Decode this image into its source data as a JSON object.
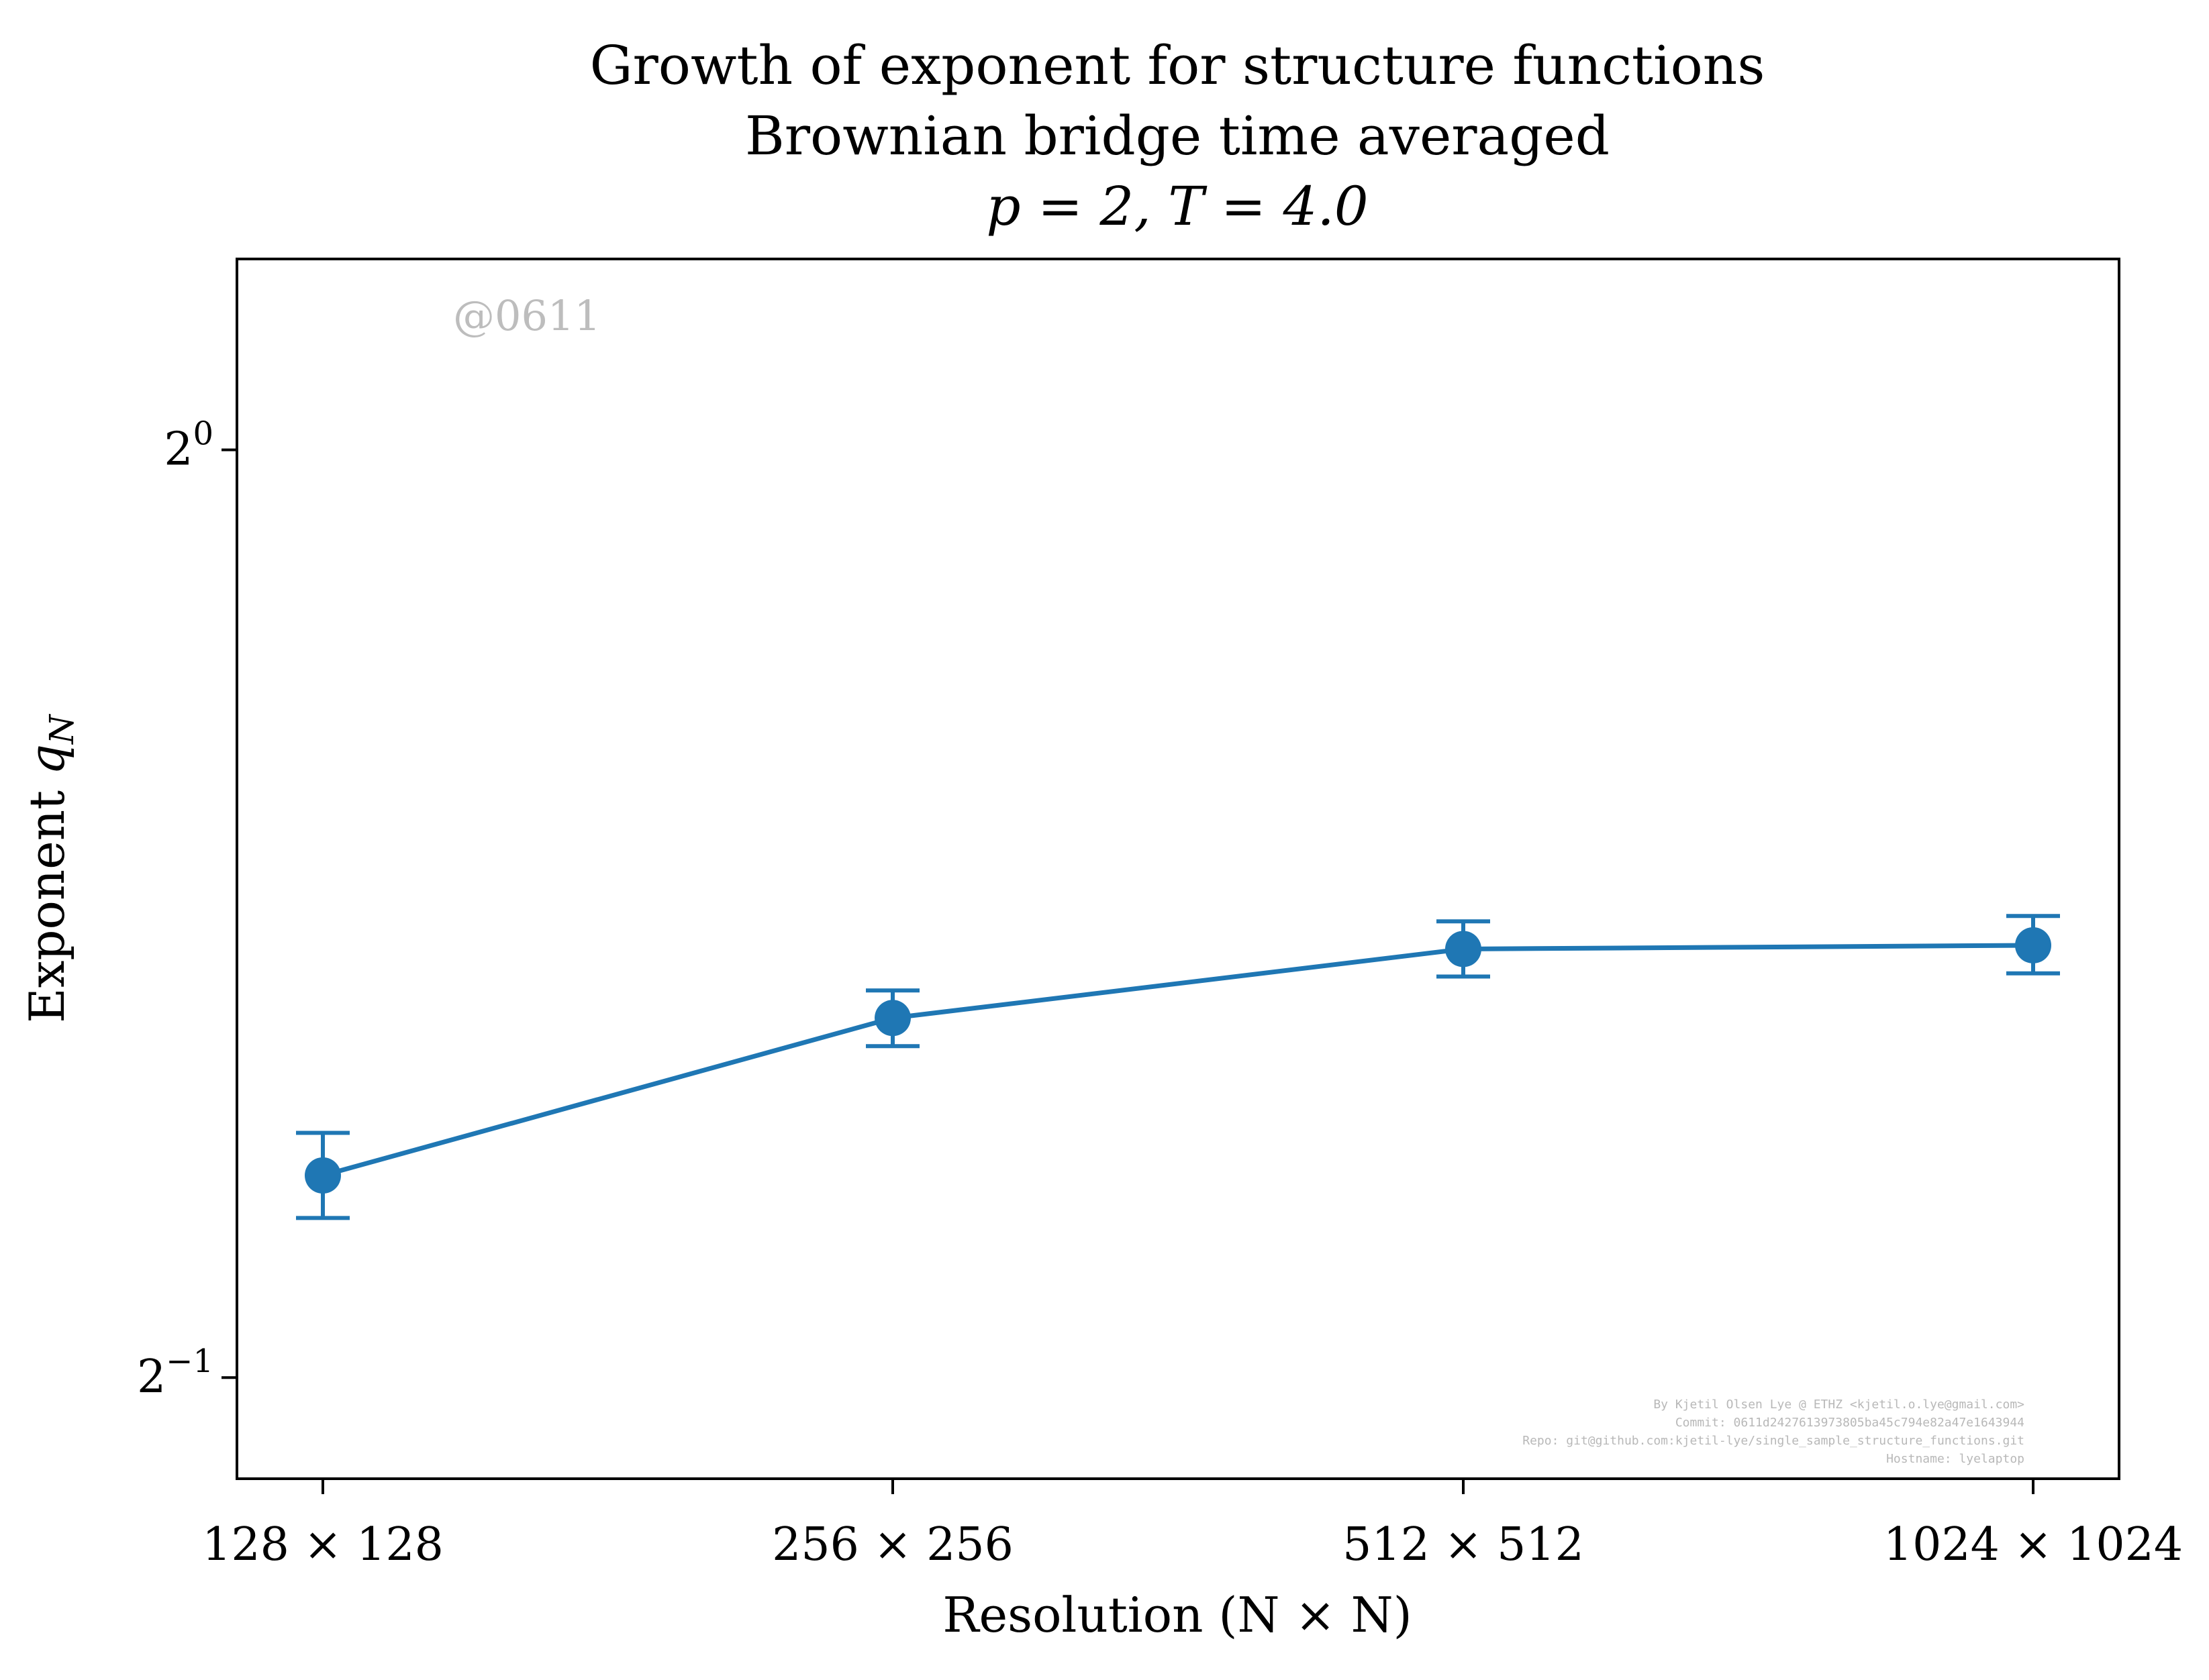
{
  "chart_data": {
    "type": "line",
    "title_lines": [
      "Growth of exponent for structure functions",
      "Brownian bridge time averaged",
      "p = 2, T = 4.0"
    ],
    "xlabel": "Resolution (N × N)",
    "ylabel_main": "Exponent ",
    "ylabel_var": "q",
    "ylabel_sub": "N",
    "y_scale": "log2",
    "ylim": [
      0.4636,
      1.1533
    ],
    "y_ticks": [
      {
        "value": 1.0,
        "base": "2",
        "exp": "0"
      },
      {
        "value": 0.5,
        "base": "2",
        "exp": "−1"
      }
    ],
    "categories": [
      "128 × 128",
      "256 × 256",
      "512 × 512",
      "1024 × 1024"
    ],
    "series": [
      {
        "color": "#1f77b4",
        "values": [
          0.5815,
          0.6541,
          0.6887,
          0.6906
        ],
        "errors_low": [
          0.5633,
          0.6405,
          0.6747,
          0.6763
        ],
        "errors_high": [
          0.6003,
          0.6677,
          0.7031,
          0.7059
        ]
      }
    ],
    "grid": false,
    "legend": "none",
    "annotations": {
      "watermark": "@0611",
      "credits": [
        "By Kjetil Olsen Lye @ ETHZ <kjetil.o.lye@gmail.com>",
        "Commit: 0611d2427613973805ba45c794e82a47e1643944",
        "Repo: git@github.com:kjetil-lye/single_sample_structure_functions.git",
        "Hostname: lyelaptop"
      ]
    }
  }
}
